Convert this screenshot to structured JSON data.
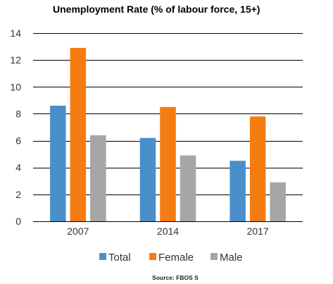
{
  "chart_data": {
    "type": "bar",
    "title": "Unemployment Rate (% of labour force, 15+)",
    "xlabel": "",
    "ylabel": "",
    "categories": [
      "2007",
      "2014",
      "2017"
    ],
    "series": [
      {
        "name": "Total",
        "color": "#4A8FC9",
        "values": [
          8.6,
          6.2,
          4.5
        ]
      },
      {
        "name": "Female",
        "color": "#F57C12",
        "values": [
          12.9,
          8.5,
          7.8
        ]
      },
      {
        "name": "Male",
        "color": "#A6A6A6",
        "values": [
          6.4,
          4.9,
          2.9
        ]
      }
    ],
    "ylim": [
      0,
      14
    ],
    "yticks": [
      "0",
      "2",
      "4",
      "6",
      "8",
      "10",
      "12",
      "14"
    ],
    "grid": true,
    "legend_position": "bottom",
    "source": "Source: FBOS S"
  }
}
